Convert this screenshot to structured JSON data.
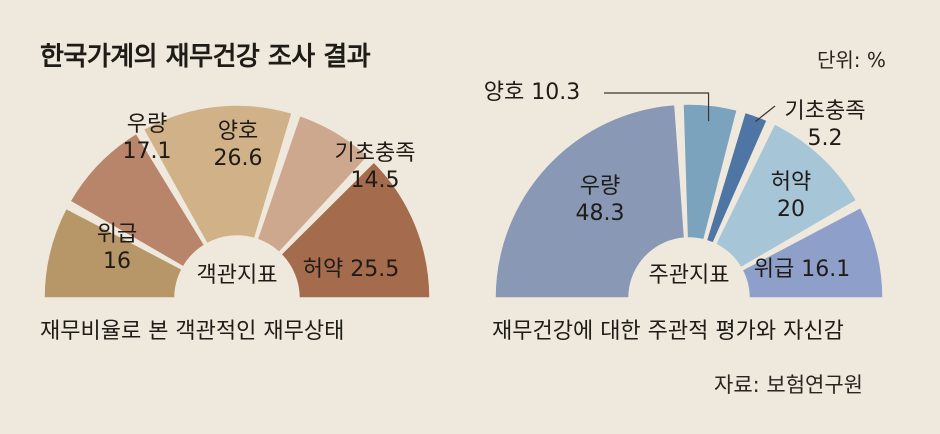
{
  "title": "한국가계의 재무건강 조사 결과",
  "unit": "단위: %",
  "source": "자료: 보험연구원",
  "chart_data": [
    {
      "type": "pie",
      "variant": "semicircle",
      "center_label": "객관지표",
      "caption": "재무비율로 본 객관적인 재무상태",
      "slices": [
        {
          "label": "위급",
          "value": 16,
          "display": "16",
          "color": "#b79767"
        },
        {
          "label": "우량",
          "value": 17.1,
          "display": "17.1",
          "color": "#b8856b"
        },
        {
          "label": "양호",
          "value": 26.6,
          "display": "26.6",
          "color": "#d1b288"
        },
        {
          "label": "기초충족",
          "value": 14.5,
          "display": "14.5",
          "color": "#cda88e"
        },
        {
          "label": "허약",
          "value": 25.5,
          "display": "25.5",
          "color": "#a46c4c"
        }
      ]
    },
    {
      "type": "pie",
      "variant": "semicircle",
      "center_label": "주관지표",
      "caption": "재무건강에 대한 주관적 평가와 자신감",
      "slices": [
        {
          "label": "우량",
          "value": 48.3,
          "display": "48.3",
          "color": "#8898b5"
        },
        {
          "label": "양호",
          "value": 10.3,
          "display": "10.3",
          "color": "#7ba3bd"
        },
        {
          "label": "기초충족",
          "value": 5.2,
          "display": "5.2",
          "color": "#4e75a3"
        },
        {
          "label": "허약",
          "value": 20,
          "display": "20",
          "color": "#a6c6d8"
        },
        {
          "label": "위급",
          "value": 16.1,
          "display": "16.1",
          "color": "#8ea0c9"
        }
      ]
    }
  ]
}
